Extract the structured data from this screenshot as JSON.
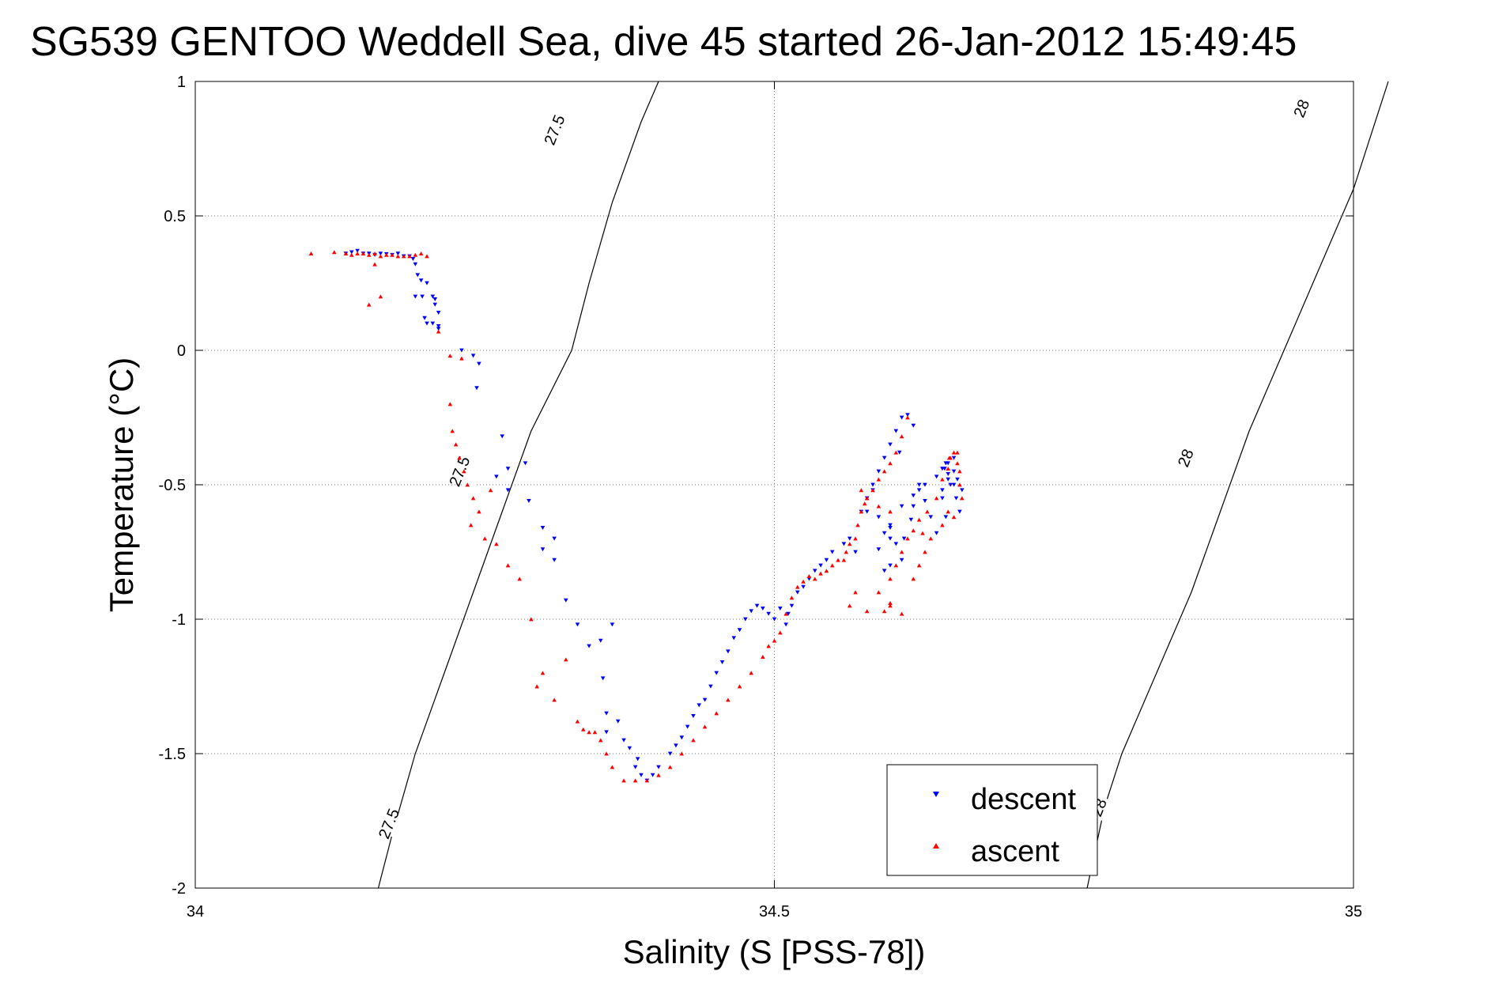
{
  "chart_data": {
    "type": "scatter",
    "title": "SG539 GENTOO Weddell Sea, dive 45 started 26-Jan-2012 15:49:45",
    "xlabel": "Salinity (S [PSS-78])",
    "ylabel": "Temperature (°C)",
    "xlim": [
      34,
      35
    ],
    "ylim": [
      -2,
      1
    ],
    "xticks": [
      34,
      34.5,
      35
    ],
    "xtick_labels": [
      "34",
      "34.5",
      "35"
    ],
    "yticks": [
      1,
      0.5,
      0,
      -0.5,
      -1,
      -1.5,
      -2
    ],
    "ytick_labels": [
      "1",
      "0.5",
      "0",
      "-0.5",
      "-1",
      "-1.5",
      "-2"
    ],
    "grid": true,
    "legend_position": "bottom-right",
    "density_contours": [
      {
        "label": "27.5",
        "points": [
          [
            34.158,
            -2
          ],
          [
            34.17,
            -1.8
          ],
          [
            34.19,
            -1.5
          ],
          [
            34.215,
            -1.2
          ],
          [
            34.24,
            -0.9
          ],
          [
            34.265,
            -0.6
          ],
          [
            34.29,
            -0.3
          ],
          [
            34.325,
            0
          ],
          [
            34.34,
            0.25
          ],
          [
            34.36,
            0.55
          ],
          [
            34.385,
            0.85
          ],
          [
            34.4,
            1.0
          ]
        ]
      },
      {
        "label": "28",
        "points": [
          [
            34.77,
            -2
          ],
          [
            34.785,
            -1.7
          ],
          [
            34.8,
            -1.5
          ],
          [
            34.83,
            -1.2
          ],
          [
            34.86,
            -0.9
          ],
          [
            34.885,
            -0.6
          ],
          [
            34.91,
            -0.3
          ],
          [
            34.94,
            0
          ],
          [
            34.97,
            0.3
          ],
          [
            35.0,
            0.6
          ],
          [
            35.03,
            1.0
          ]
        ]
      }
    ],
    "contour_labels": [
      {
        "text": "27.5",
        "x": 34.31,
        "y": 0.82
      },
      {
        "text": "27.5",
        "x": 34.228,
        "y": -0.45
      },
      {
        "text": "27.5",
        "x": 34.167,
        "y": -1.76
      },
      {
        "text": "28",
        "x": 34.955,
        "y": 0.9
      },
      {
        "text": "28",
        "x": 34.855,
        "y": -0.4
      },
      {
        "text": "28",
        "x": 34.78,
        "y": -1.7
      }
    ],
    "series": [
      {
        "name": "descent",
        "color": "#0000ff",
        "marker": "triangle-down",
        "x": [
          34.13,
          34.135,
          34.14,
          34.145,
          34.15,
          34.155,
          34.16,
          34.165,
          34.17,
          34.175,
          34.18,
          34.185,
          34.188,
          34.19,
          34.192,
          34.195,
          34.2,
          34.205,
          34.207,
          34.21,
          34.2,
          34.196,
          34.19,
          34.198,
          34.205,
          34.207,
          34.21,
          34.21,
          34.23,
          34.243,
          34.24,
          34.245,
          34.265,
          34.27,
          34.26,
          34.27,
          34.285,
          34.288,
          34.3,
          34.3,
          34.31,
          34.31,
          34.32,
          34.33,
          34.34,
          34.35,
          34.352,
          34.355,
          34.36,
          34.355,
          34.365,
          34.37,
          34.375,
          34.38,
          34.382,
          34.385,
          34.39,
          34.395,
          34.4,
          34.41,
          34.415,
          34.42,
          34.425,
          34.43,
          34.435,
          34.44,
          34.445,
          34.45,
          34.455,
          34.46,
          34.465,
          34.47,
          34.475,
          34.48,
          34.485,
          34.49,
          34.495,
          34.5,
          34.505,
          34.51,
          34.512,
          34.515,
          34.52,
          34.525,
          34.53,
          34.535,
          34.54,
          34.545,
          34.55,
          34.56,
          34.565,
          34.57,
          34.575,
          34.58,
          34.585,
          34.59,
          34.595,
          34.6,
          34.605,
          34.61,
          34.615,
          34.62,
          34.585,
          34.58,
          34.59,
          34.595,
          34.6,
          34.605,
          34.61,
          34.6,
          34.595,
          34.59,
          34.6,
          34.61,
          34.62,
          34.625,
          34.63,
          34.635,
          34.64,
          34.645,
          34.65,
          34.655,
          34.648,
          34.652,
          34.657,
          34.66,
          34.645,
          34.65,
          34.655,
          34.658,
          34.662,
          34.648,
          34.645,
          34.6,
          34.608,
          34.612,
          34.618,
          34.62,
          34.625,
          34.63,
          34.64,
          34.647,
          34.65,
          34.655
        ],
        "y": [
          0.36,
          0.365,
          0.37,
          0.36,
          0.36,
          0.355,
          0.36,
          0.358,
          0.355,
          0.36,
          0.35,
          0.35,
          0.34,
          0.32,
          0.28,
          0.26,
          0.25,
          0.2,
          0.17,
          0.14,
          0.1,
          0.2,
          0.2,
          0.12,
          0.1,
          0.19,
          0.09,
          0.08,
          0.0,
          -0.14,
          -0.02,
          -0.05,
          -0.32,
          -0.44,
          -0.47,
          -0.52,
          -0.42,
          -0.56,
          -0.66,
          -0.74,
          -0.7,
          -0.78,
          -0.93,
          -1.02,
          -1.1,
          -1.08,
          -1.22,
          -1.35,
          -1.02,
          -1.42,
          -1.38,
          -1.45,
          -1.48,
          -1.55,
          -1.52,
          -1.58,
          -1.6,
          -1.58,
          -1.55,
          -1.5,
          -1.47,
          -1.44,
          -1.4,
          -1.36,
          -1.32,
          -1.3,
          -1.25,
          -1.2,
          -1.16,
          -1.12,
          -1.07,
          -1.04,
          -1.0,
          -0.97,
          -0.95,
          -0.96,
          -0.98,
          -1.0,
          -0.96,
          -1.02,
          -0.98,
          -0.95,
          -0.9,
          -0.88,
          -0.85,
          -0.82,
          -0.8,
          -0.78,
          -0.75,
          -0.72,
          -0.7,
          -0.75,
          -0.6,
          -0.55,
          -0.5,
          -0.45,
          -0.4,
          -0.35,
          -0.3,
          -0.25,
          -0.24,
          -0.28,
          -0.52,
          -0.6,
          -0.62,
          -0.68,
          -0.7,
          -0.72,
          -0.78,
          -0.8,
          -0.82,
          -0.74,
          -0.66,
          -0.58,
          -0.54,
          -0.5,
          -0.56,
          -0.62,
          -0.68,
          -0.52,
          -0.48,
          -0.45,
          -0.42,
          -0.5,
          -0.55,
          -0.6,
          -0.44,
          -0.46,
          -0.4,
          -0.48,
          -0.52,
          -0.62,
          -0.55,
          -0.65,
          -0.38,
          -0.7,
          -0.63,
          -0.58,
          -0.52,
          -0.5,
          -0.47,
          -0.44,
          -0.42,
          -0.5
        ]
      },
      {
        "name": "ascent",
        "color": "#ff0000",
        "marker": "triangle-up",
        "x": [
          34.1,
          34.12,
          34.13,
          34.135,
          34.14,
          34.145,
          34.15,
          34.155,
          34.16,
          34.165,
          34.17,
          34.175,
          34.18,
          34.185,
          34.19,
          34.195,
          34.2,
          34.155,
          34.16,
          34.15,
          34.21,
          34.22,
          34.23,
          34.22,
          34.222,
          34.225,
          34.228,
          34.232,
          34.235,
          34.24,
          34.245,
          34.238,
          34.25,
          34.26,
          34.255,
          34.27,
          34.28,
          34.29,
          34.3,
          34.295,
          34.32,
          34.31,
          34.33,
          34.335,
          34.34,
          34.345,
          34.35,
          34.355,
          34.36,
          34.37,
          34.38,
          34.39,
          34.4,
          34.41,
          34.42,
          34.43,
          34.44,
          34.45,
          34.46,
          34.47,
          34.48,
          34.49,
          34.495,
          34.5,
          34.505,
          34.51,
          34.515,
          34.52,
          34.525,
          34.53,
          34.535,
          34.54,
          34.545,
          34.55,
          34.555,
          34.56,
          34.562,
          34.565,
          34.57,
          34.572,
          34.575,
          34.578,
          34.58,
          34.585,
          34.59,
          34.595,
          34.6,
          34.605,
          34.61,
          34.615,
          34.59,
          34.6,
          34.61,
          34.6,
          34.605,
          34.61,
          34.615,
          34.62,
          34.625,
          34.6,
          34.59,
          34.58,
          34.575,
          34.57,
          34.565,
          34.58,
          34.595,
          34.6,
          34.62,
          34.625,
          34.63,
          34.635,
          34.628,
          34.632,
          34.64,
          34.645,
          34.65,
          34.652,
          34.655,
          34.658,
          34.66,
          34.662,
          34.65,
          34.655,
          34.66,
          34.645,
          34.658,
          34.651
        ],
        "y": [
          0.36,
          0.365,
          0.36,
          0.355,
          0.36,
          0.36,
          0.355,
          0.36,
          0.35,
          0.355,
          0.355,
          0.35,
          0.35,
          0.35,
          0.355,
          0.36,
          0.35,
          0.32,
          0.2,
          0.17,
          0.07,
          -0.02,
          -0.03,
          -0.2,
          -0.3,
          -0.35,
          -0.4,
          -0.45,
          -0.5,
          -0.55,
          -0.6,
          -0.65,
          -0.7,
          -0.72,
          -0.52,
          -0.8,
          -0.85,
          -1.0,
          -1.2,
          -1.25,
          -1.15,
          -1.3,
          -1.38,
          -1.41,
          -1.42,
          -1.42,
          -1.45,
          -1.5,
          -1.55,
          -1.6,
          -1.6,
          -1.6,
          -1.58,
          -1.55,
          -1.5,
          -1.45,
          -1.4,
          -1.35,
          -1.3,
          -1.25,
          -1.2,
          -1.14,
          -1.1,
          -1.08,
          -1.05,
          -0.98,
          -0.92,
          -0.88,
          -0.86,
          -0.84,
          -0.85,
          -0.83,
          -0.82,
          -0.8,
          -0.78,
          -0.78,
          -0.75,
          -0.72,
          -0.7,
          -0.65,
          -0.6,
          -0.57,
          -0.55,
          -0.52,
          -0.48,
          -0.45,
          -0.42,
          -0.38,
          -0.32,
          -0.25,
          -0.9,
          -0.95,
          -0.98,
          -0.85,
          -0.8,
          -0.75,
          -0.7,
          -0.67,
          -0.63,
          -0.6,
          -0.58,
          -0.55,
          -0.52,
          -0.9,
          -0.95,
          -0.97,
          -0.97,
          -0.94,
          -0.85,
          -0.8,
          -0.75,
          -0.7,
          -0.68,
          -0.6,
          -0.55,
          -0.48,
          -0.44,
          -0.4,
          -0.38,
          -0.42,
          -0.5,
          -0.55,
          -0.6,
          -0.62,
          -0.45,
          -0.65,
          -0.38,
          -0.4
        ]
      }
    ]
  }
}
